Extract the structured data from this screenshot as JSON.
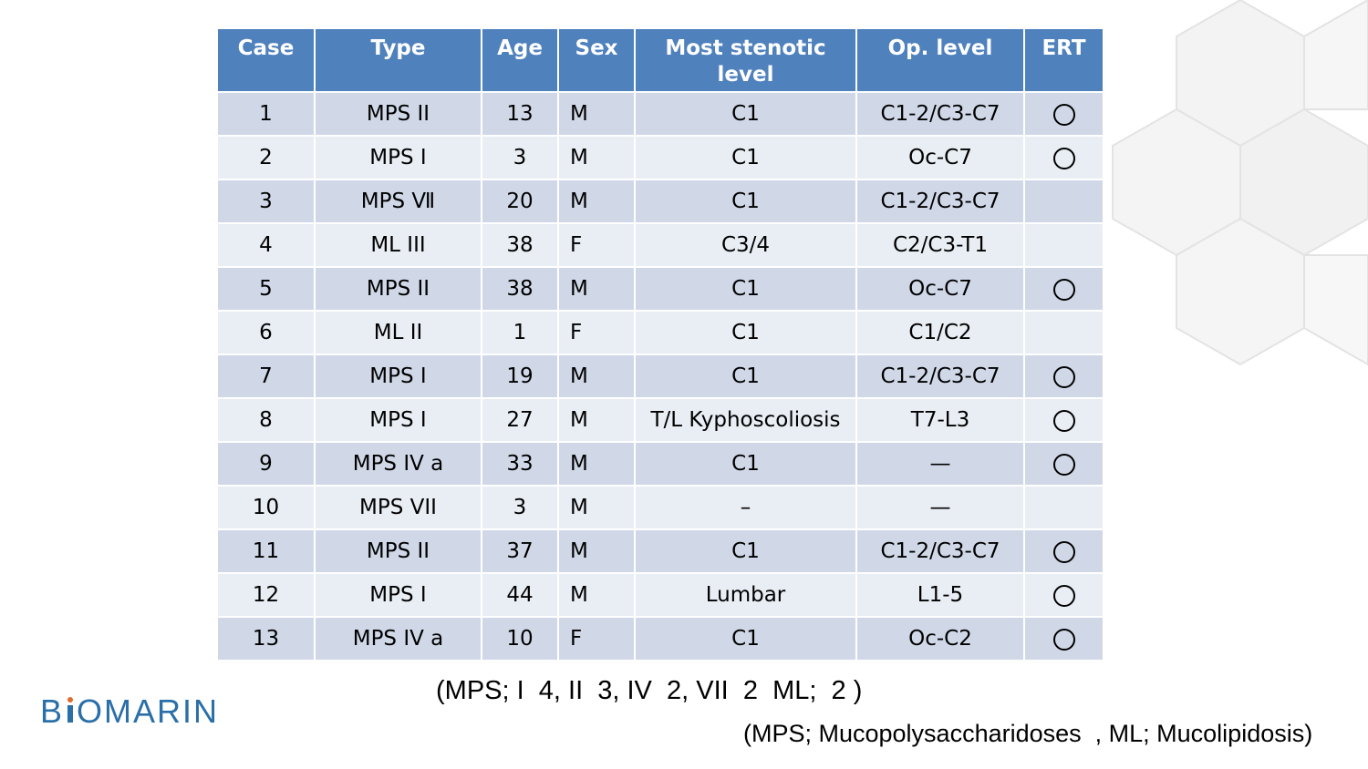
{
  "table": {
    "headers": [
      "Case",
      "Type",
      "Age",
      "Sex",
      "Most stenotic level",
      "Op. level",
      "ERT"
    ],
    "rows": [
      {
        "case": "1",
        "type": "MPS II",
        "age": "13",
        "sex": "M",
        "stenotic": "C1",
        "op": "C1-2/C3-C7",
        "ert": true
      },
      {
        "case": "2",
        "type": "MPS I",
        "age": "3",
        "sex": "M",
        "stenotic": "C1",
        "op": "Oc-C7",
        "ert": true
      },
      {
        "case": "3",
        "type": "MPS Ⅶ",
        "age": "20",
        "sex": "M",
        "stenotic": "C1",
        "op": "C1-2/C3-C7",
        "ert": false
      },
      {
        "case": "4",
        "type": "ML III",
        "age": "38",
        "sex": "F",
        "stenotic": "C3/4",
        "op": "C2/C3-T1",
        "ert": false
      },
      {
        "case": "5",
        "type": "MPS II",
        "age": "38",
        "sex": "M",
        "stenotic": "C1",
        "op": "Oc-C7",
        "ert": true
      },
      {
        "case": "6",
        "type": "ML II",
        "age": "1",
        "sex": "F",
        "stenotic": "C1",
        "op": "C1/C2",
        "ert": false
      },
      {
        "case": "7",
        "type": "MPS I",
        "age": "19",
        "sex": "M",
        "stenotic": "C1",
        "op": "C1-2/C3-C7",
        "ert": true
      },
      {
        "case": "8",
        "type": "MPS I",
        "age": "27",
        "sex": "M",
        "stenotic": "T/L Kyphoscoliosis",
        "op": "T7-L3",
        "ert": true
      },
      {
        "case": "9",
        "type": "MPS IV a",
        "age": "33",
        "sex": "M",
        "stenotic": "C1",
        "op": "—",
        "ert": true
      },
      {
        "case": "10",
        "type": "MPS VII",
        "age": "3",
        "sex": "M",
        "stenotic": "–",
        "op": "—",
        "ert": false
      },
      {
        "case": "11",
        "type": "MPS II",
        "age": "37",
        "sex": "M",
        "stenotic": "C1",
        "op": "C1-2/C3-C7",
        "ert": true
      },
      {
        "case": "12",
        "type": "MPS I",
        "age": "44",
        "sex": "M",
        "stenotic": "Lumbar",
        "op": "L1-5",
        "ert": true
      },
      {
        "case": "13",
        "type": "MPS IV a",
        "age": "10",
        "sex": "F",
        "stenotic": "C1",
        "op": "Oc-C2",
        "ert": true
      }
    ]
  },
  "summary": "(MPS; I  4, II  3, IV  2, VII  2  ML;  2 )",
  "abbreviations": "(MPS; Mucopolysaccharidoses  , ML; Mucolipidosis)",
  "logo": "BIOMARIN",
  "colors": {
    "header": "#4f81bd",
    "row_odd": "#d0d8e8",
    "row_even": "#e9edf4",
    "logo": "#2a6fa8"
  }
}
